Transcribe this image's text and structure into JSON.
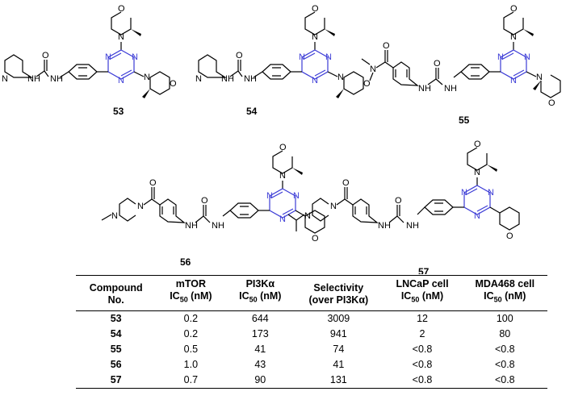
{
  "compounds": [
    {
      "label": "53"
    },
    {
      "label": "54"
    },
    {
      "label": "55"
    },
    {
      "label": "56"
    },
    {
      "label": "57"
    }
  ],
  "atom_labels": {
    "N": "N",
    "O": "O",
    "NH": "H"
  },
  "table": {
    "headers": [
      {
        "line1": "Compound",
        "line2": "No.",
        "sub": ""
      },
      {
        "line1": "mTOR",
        "line2": "IC",
        "sub": "50",
        "unit": " (nM)"
      },
      {
        "line1": "PI3Kα",
        "line2": "IC",
        "sub": "50",
        "unit": " (nM)"
      },
      {
        "line1": "Selectivity",
        "line2": "(over PI3Kα)",
        "sub": ""
      },
      {
        "line1": "LNCaP cell",
        "line2": "IC",
        "sub": "50",
        "unit": " (nM)"
      },
      {
        "line1": "MDA468 cell",
        "line2": "IC",
        "sub": "50",
        "unit": " (nM)"
      }
    ],
    "rows": [
      {
        "compound": "53",
        "mtor": "0.2",
        "pi3k": "644",
        "selectivity": "3009",
        "lncap": "12",
        "mda468": "100"
      },
      {
        "compound": "54",
        "mtor": "0.2",
        "pi3k": "173",
        "selectivity": "941",
        "lncap": "2",
        "mda468": "80"
      },
      {
        "compound": "55",
        "mtor": "0.5",
        "pi3k": "41",
        "selectivity": "74",
        "lncap": "<0.8",
        "mda468": "<0.8"
      },
      {
        "compound": "56",
        "mtor": "1.0",
        "pi3k": "43",
        "selectivity": "41",
        "lncap": "<0.8",
        "mda468": "<0.8"
      },
      {
        "compound": "57",
        "mtor": "0.7",
        "pi3k": "90",
        "selectivity": "131",
        "lncap": "<0.8",
        "mda468": "<0.8"
      }
    ]
  },
  "colors": {
    "triazine": "#3b3bd6",
    "bond": "#000000"
  }
}
